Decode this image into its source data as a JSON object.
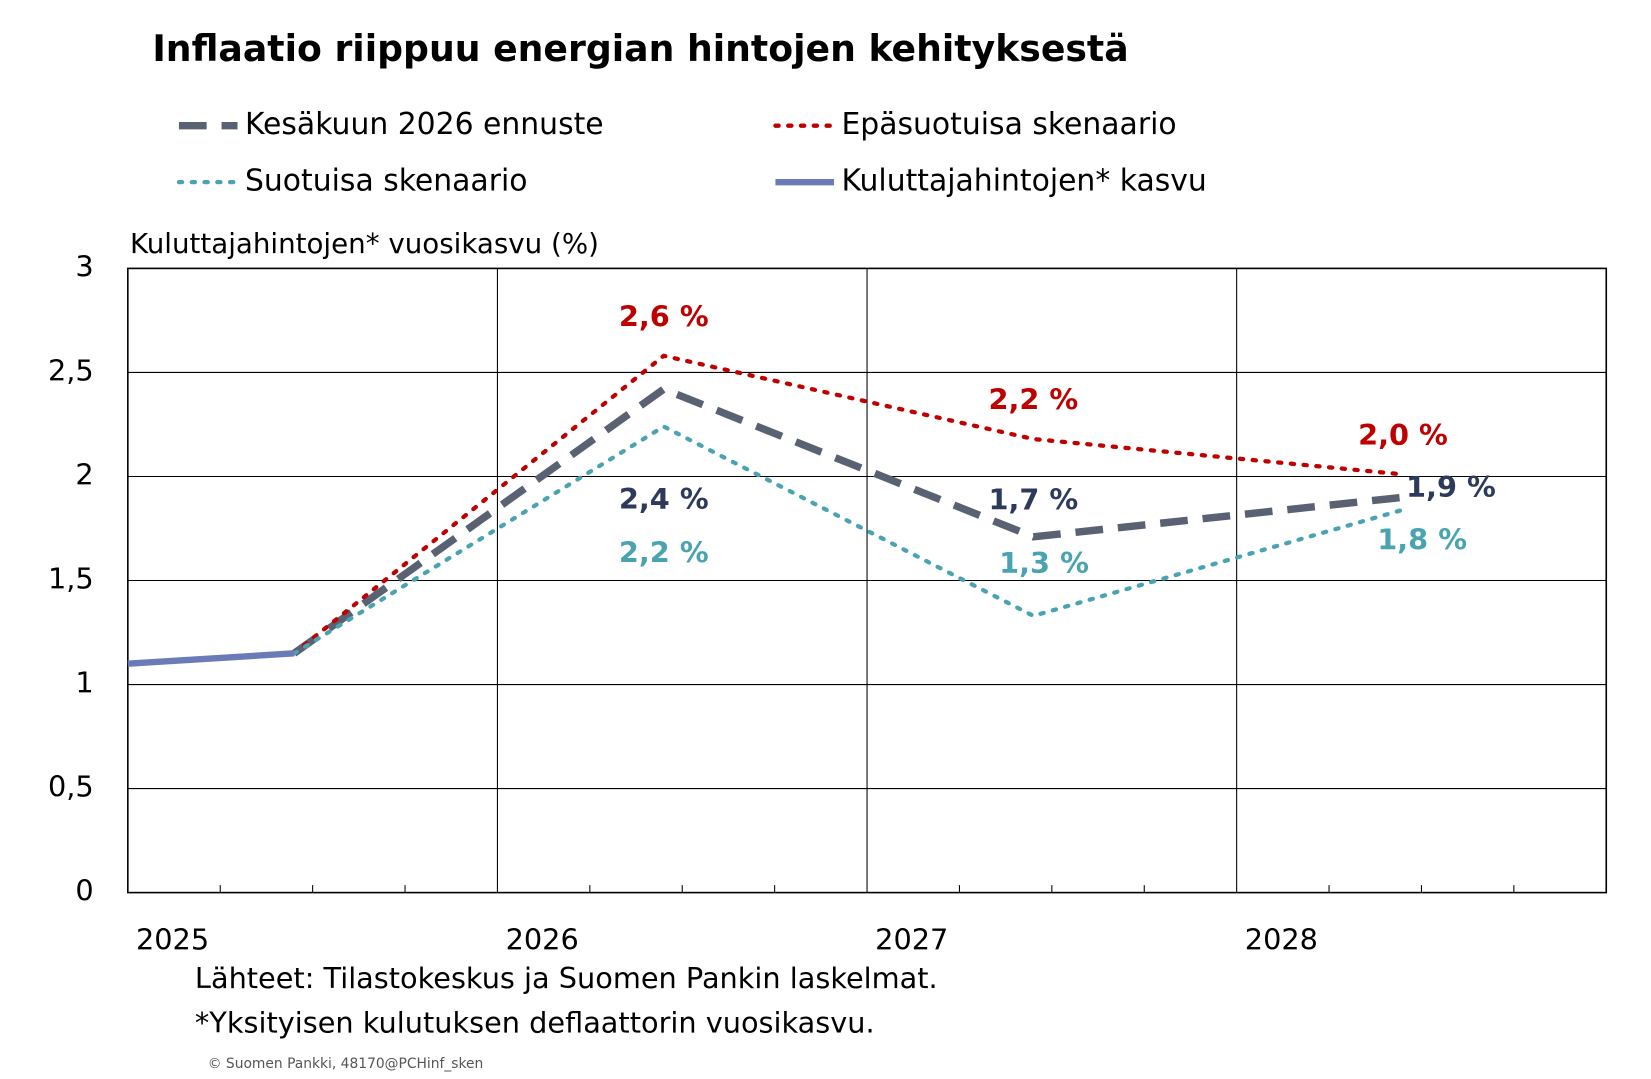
{
  "chart_data": {
    "type": "line",
    "title": "Inflaatio riippuu energian hintojen kehityksestä",
    "y_label": "Kuluttajahintojen* vuosikasvu (%)",
    "x": [
      2025,
      2025.45,
      2026.45,
      2027.45,
      2028.45
    ],
    "xlim": [
      2025,
      2029
    ],
    "xticks": [
      2025,
      2026,
      2027,
      2028
    ],
    "ylim": [
      0,
      3
    ],
    "yticks": [
      0,
      {
        "value": 0.5,
        "label": "0,5"
      },
      1,
      {
        "value": 1.5,
        "label": "1,5"
      },
      2,
      {
        "value": 2.5,
        "label": "2,5"
      },
      3
    ],
    "grid": true,
    "series": [
      {
        "name": "Kesäkuun 2026 ennuste",
        "color": "#596173",
        "style": "dashed",
        "values": [
          null,
          1.15,
          2.42,
          1.71,
          1.9
        ],
        "value_labels": [
          null,
          null,
          "2,4 %",
          "1,7 %",
          "1,9 %"
        ],
        "label_color": "#2e3a5c"
      },
      {
        "name": "Epäsuotuisa skenaario",
        "color": "#c00000",
        "style": "dotted",
        "values": [
          null,
          1.15,
          2.58,
          2.18,
          2.01
        ],
        "value_labels": [
          null,
          null,
          "2,6 %",
          "2,2 %",
          "2,0 %"
        ],
        "label_color": "#c00000"
      },
      {
        "name": "Suotuisa skenaario",
        "color": "#4aa3b0",
        "style": "dotted",
        "values": [
          null,
          1.15,
          2.24,
          1.33,
          1.84
        ],
        "value_labels": [
          null,
          null,
          "2,2 %",
          "1,3 %",
          "1,8 %"
        ],
        "label_color": "#4aa3b0"
      },
      {
        "name": "Kuluttajahintojen* kasvu",
        "color": "#6a7bb8",
        "style": "solid",
        "values": [
          1.1,
          1.15,
          null,
          null,
          null
        ]
      }
    ],
    "notes": [
      "Lähteet: Tilastokeskus ja Suomen Pankin laskelmat.",
      "*Yksityisen kulutuksen deflaattorin vuosikasvu."
    ],
    "copyright": "© Suomen Pankki, 48170@PCHinf_sken"
  }
}
